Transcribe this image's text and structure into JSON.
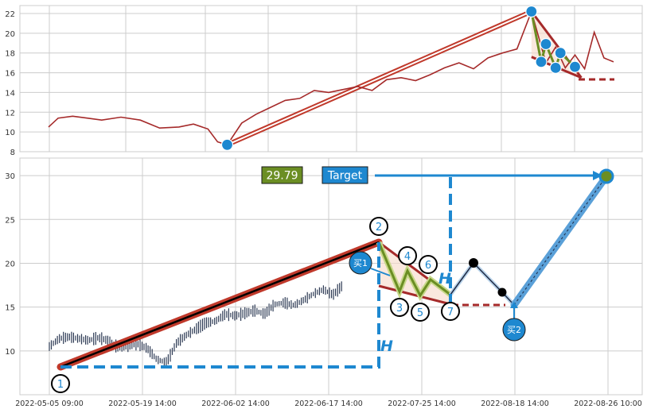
{
  "colors": {
    "price_line": "#a52a2a",
    "trend_line": "#c0392b",
    "marker_blue": "#1e88d0",
    "zigzag_olive": "#6b8e23",
    "dashed_blue": "#1e88d0",
    "dashed_red": "#a52a2a",
    "grid": "#cccccc",
    "candle": "#2e3b55"
  },
  "chart_data": [
    {
      "type": "line",
      "name": "top-panel-price",
      "ylim": [
        8,
        23
      ],
      "yticks": [
        "8",
        "10",
        "12",
        "14",
        "16",
        "18",
        "20",
        "22"
      ],
      "x_range": [
        "2022-05-05",
        "2022-08-30"
      ],
      "series": [
        {
          "x": [
            "2022-05-05",
            "2022-05-07",
            "2022-05-10",
            "2022-05-13",
            "2022-05-16",
            "2022-05-20",
            "2022-05-24",
            "2022-05-28",
            "2022-06-01",
            "2022-06-04",
            "2022-06-07",
            "2022-06-09",
            "2022-06-11",
            "2022-06-14",
            "2022-06-17",
            "2022-06-20",
            "2022-06-23",
            "2022-06-26",
            "2022-06-29",
            "2022-07-02",
            "2022-07-05",
            "2022-07-08",
            "2022-07-11",
            "2022-07-14",
            "2022-07-17",
            "2022-07-20",
            "2022-07-23",
            "2022-07-26",
            "2022-07-29",
            "2022-08-01",
            "2022-08-04",
            "2022-08-07",
            "2022-08-10",
            "2022-08-13",
            "2022-08-16",
            "2022-08-18",
            "2022-08-20",
            "2022-08-22",
            "2022-08-24",
            "2022-08-26",
            "2022-08-28",
            "2022-08-30"
          ],
          "values": [
            10.5,
            11.4,
            11.6,
            11.4,
            11.2,
            11.5,
            11.2,
            10.4,
            10.5,
            10.8,
            10.3,
            9.0,
            8.7,
            10.9,
            11.8,
            12.5,
            13.2,
            13.4,
            14.2,
            14.0,
            14.3,
            14.6,
            14.2,
            15.3,
            15.5,
            15.2,
            15.8,
            16.5,
            17.0,
            16.4,
            17.5,
            18.0,
            18.4,
            22.2,
            17.0,
            18.6,
            16.5,
            17.8,
            16.4,
            20.1,
            17.5,
            17.1
          ]
        }
      ],
      "markers": [
        {
          "x": "2022-06-11",
          "y": 8.7
        },
        {
          "x": "2022-08-13",
          "y": 22.2
        },
        {
          "x": "2022-08-15",
          "y": 17.1
        },
        {
          "x": "2022-08-16",
          "y": 18.9
        },
        {
          "x": "2022-08-18",
          "y": 16.5
        },
        {
          "x": "2022-08-19",
          "y": 18.0
        },
        {
          "x": "2022-08-22",
          "y": 16.6
        }
      ]
    },
    {
      "type": "candlestick",
      "name": "bottom-panel-price",
      "ylim": [
        5,
        32
      ],
      "yticks": [
        "10",
        "15",
        "20",
        "25",
        "30"
      ],
      "xticks": [
        "2022-05-05 09:00",
        "2022-05-19 14:00",
        "2022-06-02 14:00",
        "2022-06-17 14:00",
        "2022-07-25 14:00",
        "2022-08-18 14:00",
        "2022-08-26 10:00"
      ],
      "path_labels": [
        "1",
        "2",
        "3",
        "4",
        "5",
        "6",
        "7"
      ],
      "path_points": [
        {
          "label": "1",
          "y": 8.7
        },
        {
          "label": "2",
          "y": 22.2
        },
        {
          "label": "3",
          "y": 17.1
        },
        {
          "label": "4",
          "y": 18.9
        },
        {
          "label": "5",
          "y": 16.5
        },
        {
          "label": "6",
          "y": 18.0
        },
        {
          "label": "7",
          "y": 16.6
        }
      ],
      "forecast_points": [
        {
          "y": 16.6
        },
        {
          "y": 20.1
        },
        {
          "y": 17.0
        },
        {
          "y": 15.2
        },
        {
          "y": 29.79
        }
      ],
      "price_box": "29.79",
      "target_label": "Target",
      "target_value": 29.79,
      "buy1_label": "买1",
      "buy2_label": "买2",
      "h_label": "H"
    }
  ]
}
